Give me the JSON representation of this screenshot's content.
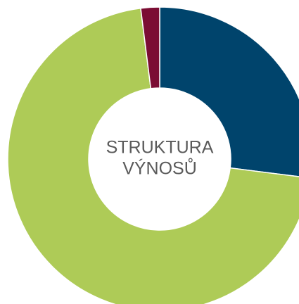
{
  "chart_data": {
    "type": "donut",
    "title_lines": [
      "STRUKTURA",
      "VÝNOSŮ"
    ],
    "values": [
      27,
      71,
      2
    ],
    "colors": [
      "#00446c",
      "#aecb57",
      "#7b0d34"
    ]
  }
}
